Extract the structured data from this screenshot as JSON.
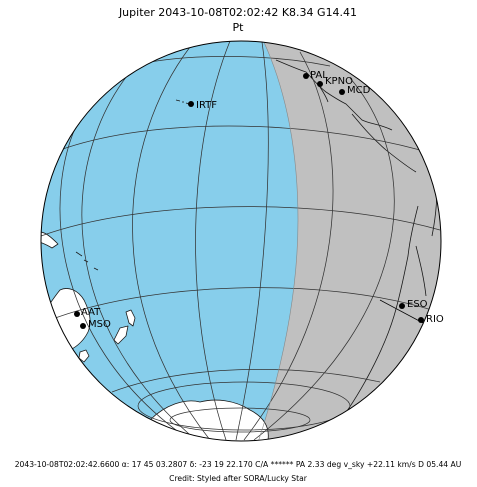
{
  "header": {
    "title": "Jupiter 2043-10-08T02:02:42  K8.34  G14.41",
    "subtitle": "Pt"
  },
  "globe": {
    "day_color": "#87ceeb",
    "night_color": "#c0c0c0",
    "land_color": "#ffffff",
    "outline_color": "#000000"
  },
  "sites": [
    {
      "id": "irtf",
      "label": "IRTF"
    },
    {
      "id": "pal",
      "label": "PAL"
    },
    {
      "id": "kpno",
      "label": "KPNO"
    },
    {
      "id": "mcd",
      "label": "MCD"
    },
    {
      "id": "eso",
      "label": "ESO"
    },
    {
      "id": "rio",
      "label": "RIO"
    },
    {
      "id": "aat",
      "label": "AAT"
    },
    {
      "id": "mso",
      "label": "MSO"
    }
  ],
  "footer": {
    "info_line": "2043-10-08T02:02:42.6600 α: 17 45 03.2807 δ: -23 19 22.170  C/A ******  PA   2.33 deg v_sky +22.11 km/s D 05.44 AU",
    "credit": "Credit: Styled after SORA/Lucky Star"
  }
}
